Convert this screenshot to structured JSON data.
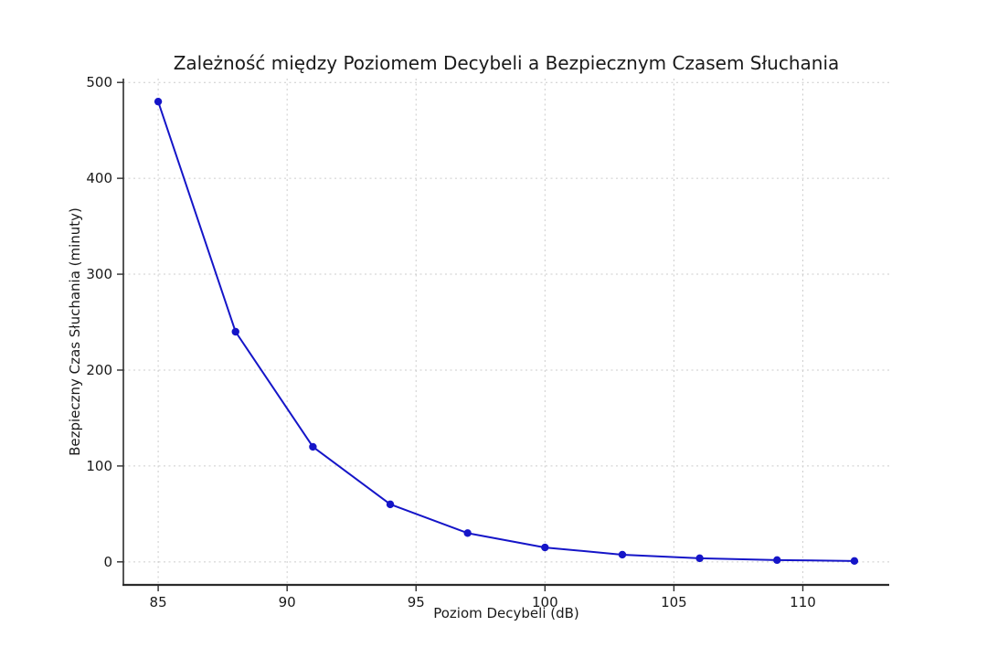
{
  "figure": {
    "background": "#ffffff"
  },
  "chart_data": {
    "type": "line",
    "title": "Zależność między Poziomem Decybeli a Bezpiecznym Czasem Słuchania",
    "xlabel": "Poziom Decybeli (dB)",
    "ylabel": "Bezpieczny Czas Słuchania (minuty)",
    "x": [
      85,
      88,
      91,
      94,
      97,
      100,
      103,
      106,
      109,
      112
    ],
    "y": [
      480,
      240,
      120,
      60,
      30,
      15,
      7.5,
      3.75,
      1.88,
      0.94
    ],
    "series_name": "Bezpieczny czas słuchania",
    "xticks": [
      85,
      90,
      95,
      100,
      105,
      110
    ],
    "yticks": [
      0,
      100,
      200,
      300,
      400,
      500
    ],
    "xlim": [
      83.65,
      113.35
    ],
    "ylim": [
      -24,
      504
    ],
    "grid": true,
    "grid_style": "dashed",
    "legend": "none",
    "line_color": "#1515c8",
    "marker_color": "#1515c8",
    "grid_color": "#cccccc",
    "spine_color": "#2b2b2b",
    "tick_color": "#2b2b2b",
    "text_color": "#1a1a1a"
  }
}
